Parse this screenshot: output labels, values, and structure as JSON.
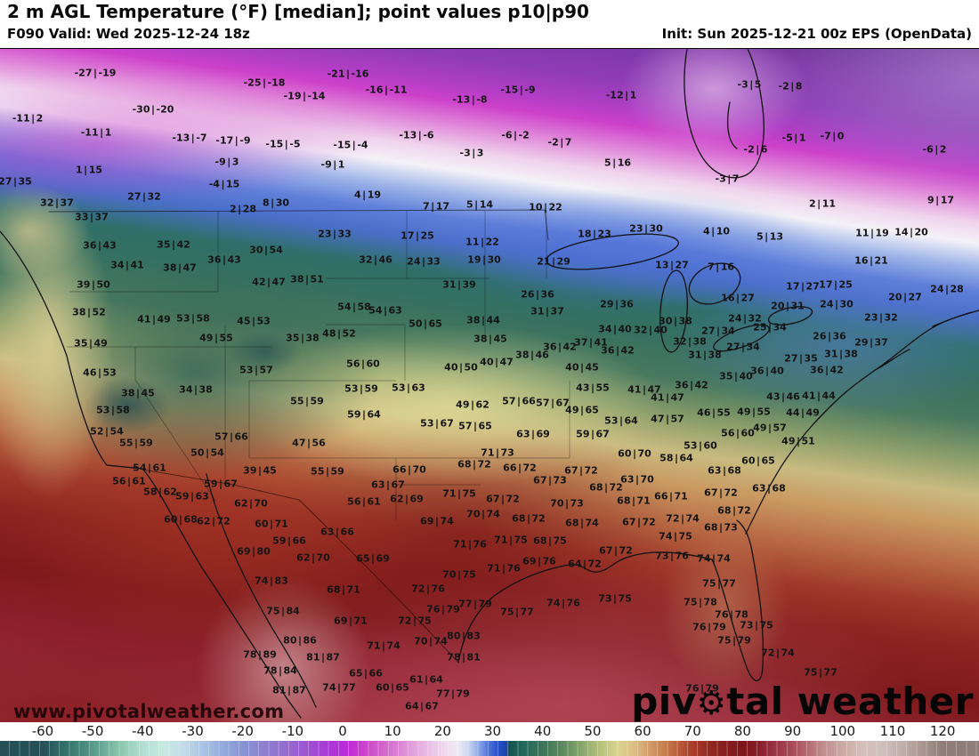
{
  "header": {
    "title": "2 m AGL Temperature (°F) [median]; point values p10|p90",
    "valid": "F090 Valid: Wed 2025-12-24 18z",
    "init": "Init: Sun 2025-12-21 00z EPS (OpenData)"
  },
  "map": {
    "watermark_url": "www.pivotalweather.com",
    "logo": {
      "pre": "piv",
      "gear_icon": "⚙",
      "post": "tal weather"
    },
    "points": [
      [
        "-27|-19",
        107,
        82
      ],
      [
        "-25|-18",
        297,
        93
      ],
      [
        "-19|-14",
        342,
        108
      ],
      [
        "-21|-16",
        391,
        83
      ],
      [
        "-16|-11",
        434,
        101
      ],
      [
        "-15|-9",
        582,
        101
      ],
      [
        "-13|-8",
        528,
        112
      ],
      [
        "-12|1",
        698,
        107
      ],
      [
        "-11|2",
        31,
        133
      ],
      [
        "-30|-20",
        172,
        123
      ],
      [
        "-11|1",
        108,
        149
      ],
      [
        "-13|-7",
        213,
        155
      ],
      [
        "-17|-9",
        262,
        158
      ],
      [
        "-15|-5",
        318,
        162
      ],
      [
        "-13|-6",
        468,
        152
      ],
      [
        "-6|-2",
        579,
        152
      ],
      [
        "-3|3",
        530,
        172
      ],
      [
        "-2|7",
        629,
        160
      ],
      [
        "-15|-4",
        394,
        163
      ],
      [
        "-9|1",
        374,
        185
      ],
      [
        "-9|3",
        255,
        182
      ],
      [
        "1|15",
        100,
        191
      ],
      [
        "-4|15",
        252,
        207
      ],
      [
        "5|16",
        694,
        183
      ],
      [
        "-3|5",
        842,
        95
      ],
      [
        "-2|8",
        888,
        97
      ],
      [
        "-5|1",
        892,
        155
      ],
      [
        "-7|0",
        935,
        153
      ],
      [
        "-6|2",
        1050,
        168
      ],
      [
        "-2|6",
        849,
        168
      ],
      [
        "-3|7",
        817,
        201
      ],
      [
        "2|11",
        924,
        229
      ],
      [
        "9|17",
        1057,
        225
      ],
      [
        "27|35",
        17,
        204
      ],
      [
        "27|32",
        162,
        221
      ],
      [
        "2|28",
        273,
        235
      ],
      [
        "8|30",
        310,
        228
      ],
      [
        "4|19",
        413,
        219
      ],
      [
        "7|17",
        490,
        232
      ],
      [
        "5|14",
        539,
        230
      ],
      [
        "10|22",
        613,
        233
      ],
      [
        "4|10",
        805,
        260
      ],
      [
        "5|13",
        865,
        266
      ],
      [
        "32|37",
        64,
        228
      ],
      [
        "33|37",
        103,
        244
      ],
      [
        "23|30",
        726,
        257
      ],
      [
        "18|23",
        668,
        263
      ],
      [
        "23|33",
        376,
        263
      ],
      [
        "17|25",
        469,
        265
      ],
      [
        "11|22",
        542,
        272
      ],
      [
        "13|27",
        755,
        298
      ],
      [
        "7|16",
        810,
        300
      ],
      [
        "11|19",
        980,
        262
      ],
      [
        "14|20",
        1024,
        261
      ],
      [
        "16|21",
        979,
        293
      ],
      [
        "36|43",
        112,
        276
      ],
      [
        "35|42",
        195,
        275
      ],
      [
        "30|54",
        299,
        281
      ],
      [
        "36|43",
        252,
        292
      ],
      [
        "34|41",
        143,
        298
      ],
      [
        "38|47",
        202,
        301
      ],
      [
        "32|46",
        422,
        292
      ],
      [
        "24|33",
        476,
        294
      ],
      [
        "19|30",
        544,
        292
      ],
      [
        "21|29",
        622,
        294
      ],
      [
        "16|27",
        829,
        335
      ],
      [
        "20|27",
        1017,
        334
      ],
      [
        "24|28",
        1064,
        325
      ],
      [
        "17|27",
        902,
        322
      ],
      [
        "17|25",
        939,
        320
      ],
      [
        "24|30",
        940,
        342
      ],
      [
        "20|31",
        885,
        344
      ],
      [
        "23|32",
        990,
        357
      ],
      [
        "24|32",
        837,
        358
      ],
      [
        "25|34",
        865,
        368
      ],
      [
        "27|34",
        807,
        372
      ],
      [
        "30|38",
        759,
        361
      ],
      [
        "32|40",
        731,
        371
      ],
      [
        "27|34",
        835,
        390
      ],
      [
        "32|38",
        775,
        384
      ],
      [
        "31|38",
        792,
        399
      ],
      [
        "26|36",
        932,
        378
      ],
      [
        "29|37",
        979,
        385
      ],
      [
        "27|35",
        900,
        403
      ],
      [
        "31|38",
        945,
        398
      ],
      [
        "36|42",
        929,
        416
      ],
      [
        "36|40",
        862,
        417
      ],
      [
        "35|40",
        827,
        423
      ],
      [
        "36|42",
        777,
        433
      ],
      [
        "39|50",
        105,
        320
      ],
      [
        "42|47",
        302,
        317
      ],
      [
        "38|51",
        345,
        314
      ],
      [
        "38|52",
        100,
        351
      ],
      [
        "41|49",
        173,
        359
      ],
      [
        "53|58",
        217,
        358
      ],
      [
        "45|53",
        285,
        361
      ],
      [
        "49|55",
        243,
        380
      ],
      [
        "35|38",
        340,
        380
      ],
      [
        "35|49",
        102,
        386
      ],
      [
        "46|53",
        112,
        419
      ],
      [
        "53|57",
        288,
        416
      ],
      [
        "38|45",
        155,
        442
      ],
      [
        "34|38",
        220,
        438
      ],
      [
        "55|59",
        345,
        451
      ],
      [
        "53|58",
        127,
        461
      ],
      [
        "52|54",
        120,
        485
      ],
      [
        "55|59",
        153,
        498
      ],
      [
        "57|66",
        260,
        491
      ],
      [
        "47|56",
        347,
        498
      ],
      [
        "50|54",
        233,
        509
      ],
      [
        "54|61",
        168,
        526
      ],
      [
        "39|45",
        292,
        529
      ],
      [
        "56|61",
        145,
        541
      ],
      [
        "59|67",
        248,
        544
      ],
      [
        "58|62",
        180,
        553
      ],
      [
        "59|63",
        216,
        558
      ],
      [
        "31|39",
        516,
        320
      ],
      [
        "26|36",
        604,
        331
      ],
      [
        "54|58",
        398,
        345
      ],
      [
        "54|63",
        433,
        349
      ],
      [
        "31|37",
        615,
        350
      ],
      [
        "29|36",
        693,
        342
      ],
      [
        "50|65",
        478,
        364
      ],
      [
        "38|44",
        543,
        360
      ],
      [
        "48|52",
        381,
        375
      ],
      [
        "34|40",
        691,
        370
      ],
      [
        "38|45",
        551,
        381
      ],
      [
        "36|42",
        629,
        390
      ],
      [
        "37|41",
        664,
        385
      ],
      [
        "36|42",
        694,
        394
      ],
      [
        "38|46",
        598,
        399
      ],
      [
        "40|47",
        558,
        407
      ],
      [
        "56|60",
        408,
        409
      ],
      [
        "40|50",
        518,
        413
      ],
      [
        "40|45",
        654,
        413
      ],
      [
        "53|59",
        406,
        437
      ],
      [
        "53|63",
        459,
        436
      ],
      [
        "43|55",
        666,
        436
      ],
      [
        "41|47",
        724,
        438
      ],
      [
        "57|66",
        583,
        451
      ],
      [
        "57|67",
        621,
        453
      ],
      [
        "49|62",
        531,
        455
      ],
      [
        "49|65",
        654,
        461
      ],
      [
        "59|64",
        409,
        466
      ],
      [
        "53|64",
        698,
        473
      ],
      [
        "53|67",
        491,
        476
      ],
      [
        "57|65",
        534,
        479
      ],
      [
        "63|69",
        599,
        488
      ],
      [
        "59|67",
        666,
        488
      ],
      [
        "60|70",
        713,
        510
      ],
      [
        "71|73",
        559,
        509
      ],
      [
        "68|72",
        533,
        522
      ],
      [
        "66|72",
        584,
        526
      ],
      [
        "67|72",
        653,
        529
      ],
      [
        "66|70",
        460,
        528
      ],
      [
        "55|59",
        368,
        530
      ],
      [
        "63|67",
        436,
        545
      ],
      [
        "67|73",
        618,
        540
      ],
      [
        "63|70",
        716,
        539
      ],
      [
        "68|72",
        681,
        548
      ],
      [
        "62|69",
        457,
        561
      ],
      [
        "71|75",
        516,
        555
      ],
      [
        "67|72",
        565,
        561
      ],
      [
        "56|61",
        409,
        564
      ],
      [
        "70|73",
        637,
        566
      ],
      [
        "68|71",
        712,
        563
      ],
      [
        "46|55",
        802,
        464
      ],
      [
        "49|55",
        847,
        463
      ],
      [
        "44|49",
        902,
        464
      ],
      [
        "41|47",
        750,
        447
      ],
      [
        "43|46",
        880,
        446
      ],
      [
        "41|44",
        920,
        445
      ],
      [
        "47|57",
        750,
        471
      ],
      [
        "56|60",
        829,
        487
      ],
      [
        "49|57",
        865,
        481
      ],
      [
        "49|51",
        897,
        496
      ],
      [
        "53|60",
        787,
        501
      ],
      [
        "58|64",
        760,
        515
      ],
      [
        "60|65",
        852,
        518
      ],
      [
        "63|68",
        814,
        529
      ],
      [
        "63|68",
        864,
        549
      ],
      [
        "67|72",
        810,
        554
      ],
      [
        "66|71",
        754,
        558
      ],
      [
        "62|70",
        282,
        566
      ],
      [
        "60|68",
        203,
        584
      ],
      [
        "62|72",
        240,
        586
      ],
      [
        "60|71",
        305,
        589
      ],
      [
        "59|66",
        325,
        608
      ],
      [
        "69|80",
        285,
        620
      ],
      [
        "62|70",
        352,
        627
      ],
      [
        "74|83",
        305,
        653
      ],
      [
        "75|84",
        318,
        687
      ],
      [
        "80|86",
        337,
        720
      ],
      [
        "78|89",
        292,
        736
      ],
      [
        "81|87",
        363,
        739
      ],
      [
        "78|84",
        315,
        754
      ],
      [
        "81|87",
        325,
        776
      ],
      [
        "63|66",
        379,
        598
      ],
      [
        "65|69",
        419,
        628
      ],
      [
        "68|71",
        386,
        663
      ],
      [
        "69|71",
        394,
        698
      ],
      [
        "71|74",
        431,
        726
      ],
      [
        "72|75",
        466,
        698
      ],
      [
        "72|76",
        481,
        662
      ],
      [
        "70|75",
        516,
        646
      ],
      [
        "70|74",
        543,
        578
      ],
      [
        "69|74",
        491,
        586
      ],
      [
        "68|72",
        594,
        583
      ],
      [
        "68|74",
        654,
        588
      ],
      [
        "67|72",
        718,
        587
      ],
      [
        "71|76",
        528,
        612
      ],
      [
        "71|75",
        574,
        607
      ],
      [
        "68|75",
        618,
        608
      ],
      [
        "67|72",
        692,
        619
      ],
      [
        "69|76",
        606,
        631
      ],
      [
        "64|72",
        657,
        634
      ],
      [
        "71|76",
        566,
        639
      ],
      [
        "73|76",
        755,
        625
      ],
      [
        "74|74",
        802,
        628
      ],
      [
        "74|76",
        633,
        678
      ],
      [
        "73|75",
        691,
        673
      ],
      [
        "75|77",
        581,
        688
      ],
      [
        "77|79",
        534,
        679
      ],
      [
        "76|79",
        498,
        685
      ],
      [
        "80|83",
        521,
        715
      ],
      [
        "70|74",
        484,
        721
      ],
      [
        "78|81",
        521,
        739
      ],
      [
        "65|66",
        411,
        757
      ],
      [
        "61|64",
        479,
        764
      ],
      [
        "60|65",
        441,
        773
      ],
      [
        "74|77",
        381,
        773
      ],
      [
        "77|79",
        509,
        780
      ],
      [
        "64|67",
        474,
        794
      ],
      [
        "68|72",
        825,
        574
      ],
      [
        "72|74",
        767,
        583
      ],
      [
        "68|73",
        810,
        593
      ],
      [
        "74|75",
        759,
        603
      ],
      [
        "75|77",
        808,
        656
      ],
      [
        "75|78",
        787,
        677
      ],
      [
        "76|78",
        822,
        691
      ],
      [
        "76|79",
        797,
        705
      ],
      [
        "73|75",
        850,
        703
      ],
      [
        "75|79",
        825,
        720
      ],
      [
        "72|74",
        874,
        734
      ],
      [
        "75|77",
        922,
        756
      ],
      [
        "76|79",
        789,
        774
      ]
    ]
  },
  "colorbar": {
    "unit": "°F",
    "ticks": [
      -60,
      -50,
      -40,
      -30,
      -20,
      -10,
      0,
      10,
      20,
      30,
      40,
      50,
      60,
      70,
      80,
      90,
      100,
      110,
      120
    ],
    "stops": [
      [
        -60,
        "#265058"
      ],
      [
        -56,
        "#2f6e68"
      ],
      [
        -52,
        "#48887c"
      ],
      [
        -48,
        "#6aab97"
      ],
      [
        -44,
        "#8fc9b4"
      ],
      [
        -40,
        "#b2e0d2"
      ],
      [
        -36,
        "#c6e9e0"
      ],
      [
        -32,
        "#c4dcea"
      ],
      [
        -28,
        "#a9c4e4"
      ],
      [
        -24,
        "#94aadb"
      ],
      [
        -20,
        "#8795d4"
      ],
      [
        -16,
        "#8c82d0"
      ],
      [
        -12,
        "#9470ce"
      ],
      [
        -8,
        "#9c59d0"
      ],
      [
        -4,
        "#a73fd6"
      ],
      [
        0,
        "#b62cdb"
      ],
      [
        2,
        "#c430d4"
      ],
      [
        4,
        "#cb41cd"
      ],
      [
        8,
        "#d364cb"
      ],
      [
        12,
        "#dc8bd7"
      ],
      [
        16,
        "#e7b3e3"
      ],
      [
        20,
        "#f0d7ee"
      ],
      [
        23,
        "#edeaf3"
      ],
      [
        25,
        "#cfd9f2"
      ],
      [
        27,
        "#93aee9"
      ],
      [
        29,
        "#5277dd"
      ],
      [
        31,
        "#2a52c8"
      ],
      [
        32.5,
        "#1c45b0"
      ],
      [
        33.5,
        "#14544e"
      ],
      [
        36,
        "#23685c"
      ],
      [
        40,
        "#3b7459"
      ],
      [
        44,
        "#5c8a5e"
      ],
      [
        48,
        "#8aa86c"
      ],
      [
        52,
        "#bcc57e"
      ],
      [
        55,
        "#d8d48e"
      ],
      [
        58,
        "#dec085"
      ],
      [
        61,
        "#d3a06b"
      ],
      [
        64,
        "#c8824f"
      ],
      [
        67,
        "#bb5f3b"
      ],
      [
        70,
        "#a83c2a"
      ],
      [
        73,
        "#962b22"
      ],
      [
        76,
        "#891f1d"
      ],
      [
        80,
        "#7b161a"
      ],
      [
        83,
        "#871d28"
      ],
      [
        86,
        "#983043"
      ],
      [
        90,
        "#a84c5c"
      ],
      [
        93,
        "#b56a72"
      ],
      [
        96,
        "#c08c8e"
      ],
      [
        100,
        "#ccaaa6"
      ],
      [
        104,
        "#d4bfba"
      ],
      [
        108,
        "#cfc0bc"
      ],
      [
        112,
        "#bfaeaa"
      ],
      [
        116,
        "#a99691"
      ],
      [
        120,
        "#8e7d78"
      ]
    ]
  }
}
